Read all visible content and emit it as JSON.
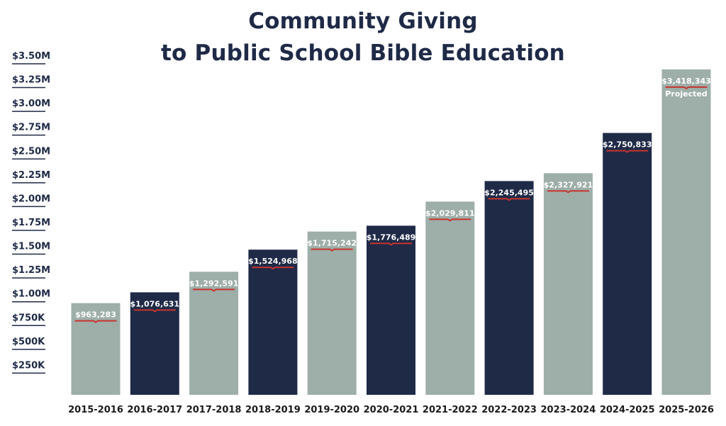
{
  "title_line1": "Community Giving",
  "title_line2": "to Public School Bible Education",
  "colors": {
    "dark": "#1f2a47",
    "light": "#9eaea9",
    "underline": "#c8352e",
    "axis_text": "#1f2a47"
  },
  "chart_data": {
    "type": "bar",
    "title": "Community Giving to Public School Bible Education",
    "xlabel": "",
    "ylabel": "",
    "ylim": [
      0,
      3500000
    ],
    "y_ticks": [
      {
        "value": 250000,
        "label": "$250K"
      },
      {
        "value": 500000,
        "label": "$500K"
      },
      {
        "value": 750000,
        "label": "$750K"
      },
      {
        "value": 1000000,
        "label": "$1.00M"
      },
      {
        "value": 1250000,
        "label": "$1.25M"
      },
      {
        "value": 1500000,
        "label": "$1.50M"
      },
      {
        "value": 1750000,
        "label": "$1.75M"
      },
      {
        "value": 2000000,
        "label": "$2.00M"
      },
      {
        "value": 2250000,
        "label": "$2.25M"
      },
      {
        "value": 2500000,
        "label": "$2.50M"
      },
      {
        "value": 2750000,
        "label": "$2.75M"
      },
      {
        "value": 3000000,
        "label": "$3.00M"
      },
      {
        "value": 3250000,
        "label": "$3.25M"
      },
      {
        "value": 3500000,
        "label": "$3.50M"
      }
    ],
    "categories": [
      "2015-2016",
      "2016-2017",
      "2017-2018",
      "2018-2019",
      "2019-2020",
      "2020-2021",
      "2021-2022",
      "2022-2023",
      "2023-2024",
      "2024-2025",
      "2025-2026"
    ],
    "values": [
      963283,
      1076631,
      1292591,
      1524968,
      1715242,
      1776489,
      2029811,
      2245495,
      2327921,
      2750833,
      3418343
    ],
    "value_labels": [
      "$963,283",
      "$1,076,631",
      "$1,292,591",
      "$1,524,968",
      "$1,715,242",
      "$1,776,489",
      "$2,029,811",
      "$2,245,495",
      "$2,327,921",
      "$2,750,833",
      "$3,418,343"
    ],
    "bar_colors": [
      "light",
      "dark",
      "light",
      "dark",
      "light",
      "dark",
      "light",
      "dark",
      "light",
      "dark",
      "light"
    ],
    "annotations": [
      {
        "category": "2025-2026",
        "text": "Projected"
      }
    ],
    "grid": false,
    "legend": "none"
  }
}
